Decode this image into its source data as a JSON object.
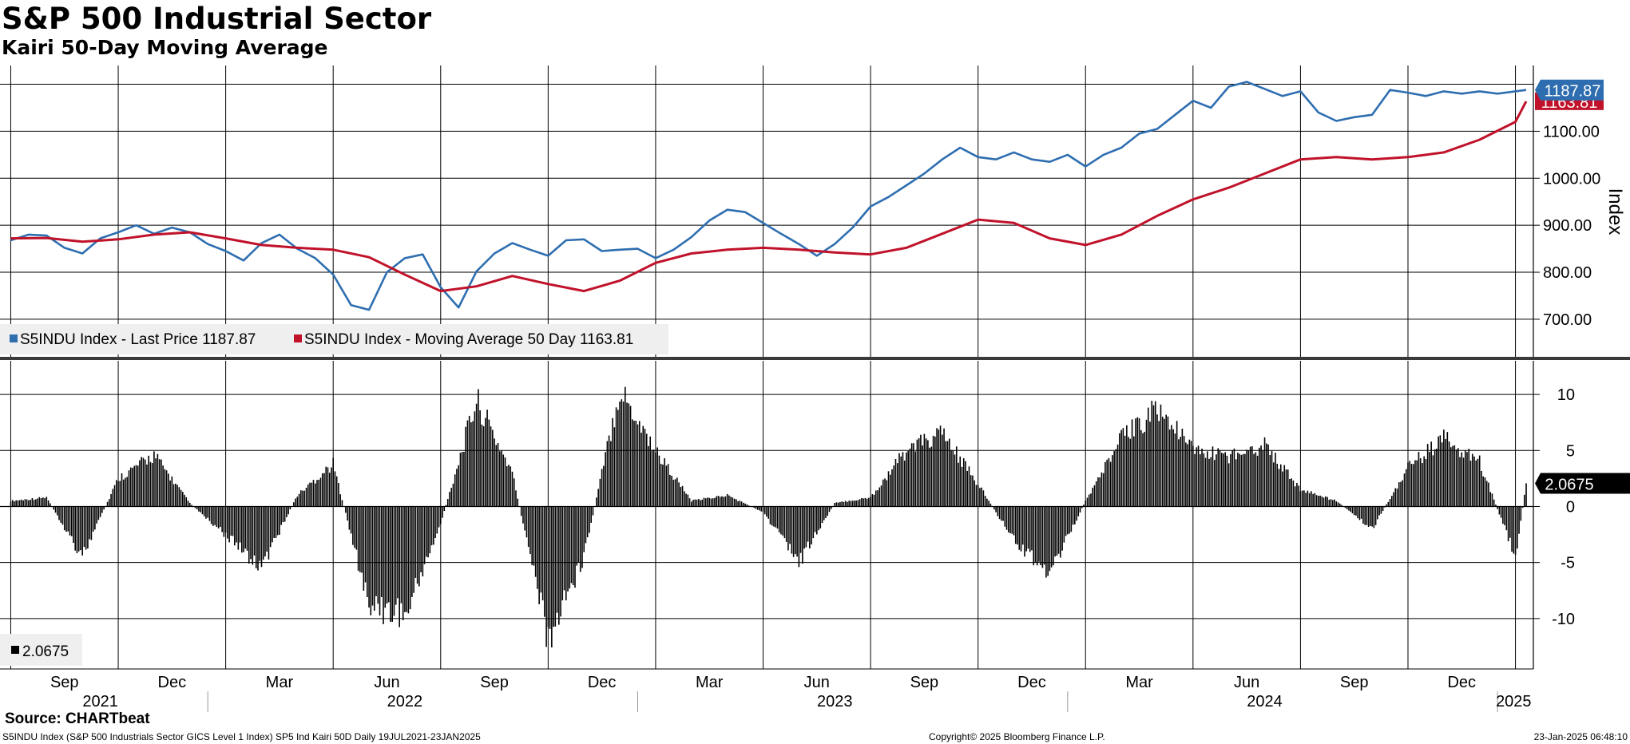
{
  "header": {
    "title": "S&P 500 Industrial Sector",
    "subtitle": "Kairi 50-Day Moving Average"
  },
  "footer": {
    "source": "Source: CHARTbeat",
    "description": "S5INDU Index (S&P 500 Industrials Sector GICS Level 1 Index) SP5 Ind Kairi 50D  Daily 19JUL2021-23JAN2025",
    "copyright": "Copyright© 2025 Bloomberg Finance L.P.",
    "timestamp": "23-Jan-2025 06:48:10"
  },
  "colors": {
    "price": "#2e6eb0",
    "moving_average": "#c0122a",
    "kairi": "#000000",
    "grid": "#000000",
    "background": "#ffffff",
    "legend_bg": "#efefef"
  },
  "chart_data": [
    {
      "type": "line",
      "name": "upper-panel",
      "ylabel": "Index",
      "ylim": [
        620,
        1240
      ],
      "yticks": [
        "700.00",
        "800.00",
        "900.00",
        "1000.00",
        "1100.00"
      ],
      "ytick_values": [
        700,
        800,
        900,
        1000,
        1100
      ],
      "legend": [
        {
          "label": "S5INDU Index - Last Price 1187.87",
          "color": "#2e6eb0"
        },
        {
          "label": "S5INDU Index - Moving Average 50 Day 1163.81",
          "color": "#c0122a"
        }
      ],
      "last_value_labels": [
        {
          "text": "1187.87",
          "value": 1187.87,
          "color": "#2e6eb0"
        },
        {
          "text": "1163.81",
          "value": 1163.81,
          "color": "#c0122a"
        }
      ],
      "series": [
        {
          "name": "S5INDU Index - Last Price",
          "color": "#2e6eb0",
          "x": [
            0,
            0.5,
            1,
            1.5,
            2,
            2.5,
            3,
            3.5,
            4,
            4.5,
            5,
            5.5,
            6,
            6.5,
            7,
            7.5,
            8,
            8.5,
            9,
            9.5,
            10,
            10.5,
            11,
            11.5,
            12,
            12.5,
            13,
            13.5,
            14,
            14.5,
            15,
            15.5,
            16,
            16.5,
            17,
            17.5,
            18,
            18.5,
            19,
            19.5,
            20,
            20.5,
            21,
            21.5,
            22,
            22.5,
            23,
            23.5,
            24,
            24.5,
            25,
            25.5,
            26,
            26.5,
            27,
            27.5,
            28,
            28.5,
            29,
            29.5,
            30,
            30.5,
            31,
            31.5,
            32,
            32.5,
            33,
            33.5,
            34,
            34.5,
            35,
            35.5,
            36,
            36.5,
            37,
            37.5,
            38,
            38.5,
            39,
            39.5,
            40,
            40.5,
            41,
            41.5,
            42,
            42.3
          ],
          "values": [
            868,
            880,
            878,
            852,
            840,
            872,
            885,
            900,
            882,
            895,
            885,
            860,
            845,
            825,
            862,
            880,
            850,
            830,
            795,
            730,
            720,
            800,
            830,
            838,
            768,
            725,
            802,
            840,
            862,
            848,
            835,
            868,
            870,
            845,
            848,
            850,
            830,
            848,
            875,
            910,
            933,
            928,
            905,
            882,
            860,
            835,
            860,
            895,
            940,
            960,
            985,
            1010,
            1040,
            1065,
            1045,
            1040,
            1055,
            1040,
            1035,
            1050,
            1025,
            1050,
            1065,
            1095,
            1105,
            1135,
            1165,
            1150,
            1195,
            1205,
            1190,
            1175,
            1185,
            1140,
            1122,
            1130,
            1135,
            1188,
            1182,
            1175,
            1185,
            1180,
            1185,
            1180,
            1185,
            1187.87
          ]
        },
        {
          "name": "S5INDU Index - Moving Average 50 Day",
          "color": "#c0122a",
          "x": [
            0,
            1,
            2,
            3,
            4,
            5,
            6,
            7,
            8,
            9,
            10,
            11,
            12,
            13,
            14,
            15,
            16,
            17,
            18,
            19,
            20,
            21,
            22,
            23,
            24,
            25,
            26,
            27,
            28,
            29,
            30,
            31,
            32,
            33,
            34,
            35,
            36,
            37,
            38,
            39,
            40,
            41,
            42,
            42.3
          ],
          "values": [
            872,
            873,
            865,
            870,
            880,
            885,
            872,
            858,
            852,
            848,
            832,
            795,
            760,
            770,
            792,
            775,
            760,
            782,
            820,
            840,
            848,
            852,
            848,
            842,
            838,
            852,
            882,
            912,
            905,
            872,
            858,
            880,
            920,
            955,
            980,
            1010,
            1040,
            1045,
            1040,
            1045,
            1055,
            1082,
            1120,
            1163.81
          ]
        }
      ]
    },
    {
      "type": "bar",
      "name": "lower-panel",
      "ylim": [
        -14.5,
        13
      ],
      "yticks": [
        "10",
        "5",
        "0",
        "-5",
        "-10"
      ],
      "ytick_values": [
        10,
        5,
        0,
        -5,
        -10
      ],
      "legend": [
        {
          "label": "2.0675",
          "color": "#000000"
        }
      ],
      "last_value_label": {
        "text": "2.0675",
        "value": 2.0675
      },
      "series": [
        {
          "name": "SP5 Ind Kairi 50D",
          "color": "#000000",
          "x": [
            0,
            1,
            2,
            3,
            4,
            5,
            6,
            7,
            8,
            9,
            10,
            11,
            12,
            13,
            14,
            15,
            16,
            17,
            18,
            19,
            20,
            21,
            22,
            23,
            24,
            25,
            26,
            27,
            28,
            29,
            30,
            31,
            32,
            33,
            34,
            35,
            36,
            37,
            38,
            39,
            40,
            41,
            42,
            42.3
          ],
          "values": [
            0.5,
            0.8,
            -4.5,
            2.5,
            4.6,
            0.3,
            -2.5,
            -5.5,
            1.0,
            3.8,
            -8.8,
            -9.8,
            -1.5,
            9.5,
            3.0,
            -12.0,
            -4.5,
            10.5,
            5.0,
            0.5,
            1.0,
            -0.5,
            -5.0,
            0.3,
            0.8,
            5.0,
            6.5,
            2.0,
            -3.0,
            -6.0,
            0.5,
            6.0,
            8.8,
            5.0,
            4.5,
            5.5,
            1.5,
            0.5,
            -2.0,
            3.5,
            6.0,
            4.0,
            -4.5,
            2.0675
          ]
        }
      ]
    }
  ],
  "x_axis": {
    "month_labels": [
      "Sep",
      "Dec",
      "Mar",
      "Jun",
      "Sep",
      "Dec",
      "Mar",
      "Jun",
      "Sep",
      "Dec",
      "Mar",
      "Jun",
      "Sep",
      "Dec"
    ],
    "month_positions": [
      1.5,
      4.5,
      7.5,
      10.5,
      13.5,
      16.5,
      19.5,
      22.5,
      25.5,
      28.5,
      31.5,
      34.5,
      37.5,
      40.5
    ],
    "year_labels": [
      "2021",
      "2022",
      "2023",
      "2024",
      "2025"
    ],
    "year_positions": [
      2.5,
      11.0,
      23.0,
      35.0,
      41.95
    ],
    "year_boundaries": [
      5.5,
      17.5,
      29.5,
      41.5
    ],
    "xlim": [
      -0.3,
      42.5
    ]
  }
}
